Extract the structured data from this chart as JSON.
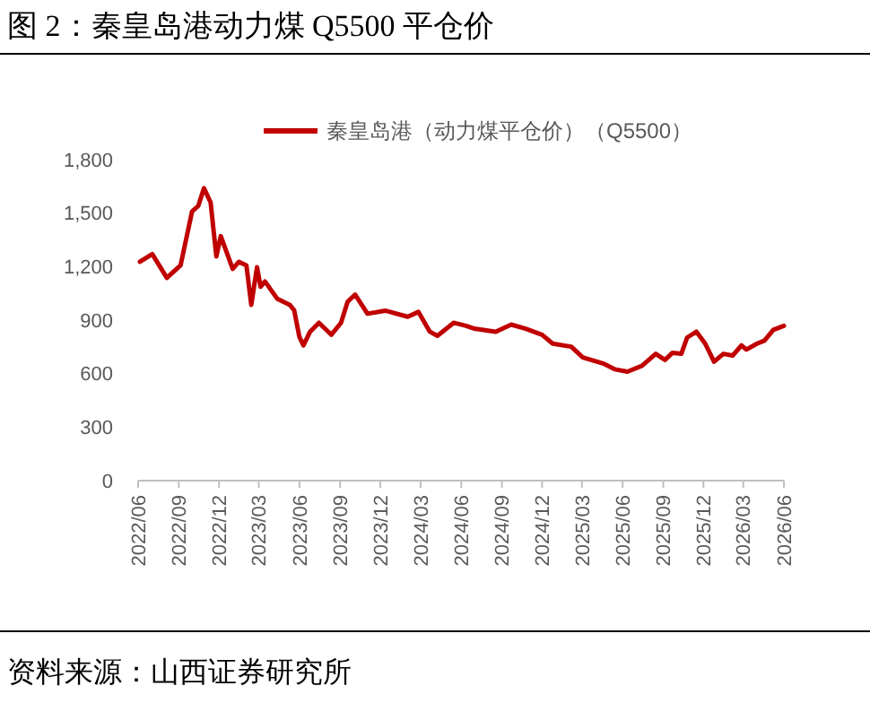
{
  "chart_data": {
    "type": "line",
    "title": "图 2：秦皇岛港动力煤 Q5500 平仓价",
    "annotations": [
      "资料来源：山西证券研究所"
    ],
    "x": [
      "2022-06-05",
      "2022-07-03",
      "2022-08-05",
      "2022-09-05",
      "2022-10-01",
      "2022-10-15",
      "2022-10-28",
      "2022-11-12",
      "2022-11-25",
      "2022-12-05",
      "2023-01-01",
      "2023-01-15",
      "2023-02-01",
      "2023-02-12",
      "2023-02-25",
      "2023-03-05",
      "2023-03-15",
      "2023-04-12",
      "2023-05-10",
      "2023-05-20",
      "2023-06-01",
      "2023-06-10",
      "2023-06-25",
      "2023-07-15",
      "2023-08-12",
      "2023-09-03",
      "2023-09-18",
      "2023-10-05",
      "2023-11-02",
      "2023-12-12",
      "2024-02-01",
      "2024-02-25",
      "2024-03-22",
      "2024-04-08",
      "2024-05-15",
      "2024-06-12",
      "2024-07-01",
      "2024-08-18",
      "2024-09-22",
      "2024-10-25",
      "2024-12-01",
      "2024-12-25",
      "2025-02-05",
      "2025-03-03",
      "2025-04-18",
      "2025-05-15",
      "2025-06-12",
      "2025-07-15",
      "2025-08-15",
      "2025-09-05",
      "2025-09-22",
      "2025-10-12",
      "2025-10-25",
      "2025-11-15",
      "2025-12-05",
      "2025-12-25",
      "2026-01-15",
      "2026-02-05",
      "2026-02-25",
      "2026-03-08",
      "2026-04-01",
      "2026-04-18",
      "2026-05-08",
      "2026-06-01"
    ],
    "series": [
      {
        "name": "秦皇岛港（动力煤平仓价）（Q5500）",
        "color": "#c00000",
        "values": [
          1227,
          1270,
          1137,
          1207,
          1509,
          1540,
          1640,
          1560,
          1257,
          1371,
          1187,
          1227,
          1207,
          986,
          1197,
          1087,
          1117,
          1019,
          986,
          955,
          805,
          758,
          835,
          885,
          818,
          885,
          1003,
          1043,
          936,
          953,
          919,
          946,
          835,
          812,
          885,
          868,
          852,
          835,
          875,
          852,
          818,
          768,
          751,
          691,
          657,
          624,
          611,
          644,
          711,
          677,
          717,
          711,
          802,
          835,
          768,
          667,
          711,
          701,
          758,
          735,
          768,
          785,
          845,
          868
        ]
      }
    ],
    "xlim": [
      "2022-06",
      "2026-06"
    ],
    "xticks": [
      {
        "value": "2022-06",
        "label": "2022/06"
      },
      {
        "value": "2022-09",
        "label": "2022/09"
      },
      {
        "value": "2022-12",
        "label": "2022/12"
      },
      {
        "value": "2023-03",
        "label": "2023/03"
      },
      {
        "value": "2023-06",
        "label": "2023/06"
      },
      {
        "value": "2023-09",
        "label": "2023/09"
      },
      {
        "value": "2023-12",
        "label": "2023/12"
      },
      {
        "value": "2024-03",
        "label": "2024/03"
      },
      {
        "value": "2024-06",
        "label": "2024/06"
      },
      {
        "value": "2024-09",
        "label": "2024/09"
      },
      {
        "value": "2024-12",
        "label": "2024/12"
      },
      {
        "value": "2025-03",
        "label": "2025/03"
      },
      {
        "value": "2025-06",
        "label": "2025/06"
      },
      {
        "value": "2025-09",
        "label": "2025/09"
      },
      {
        "value": "2025-12",
        "label": "2025/12"
      },
      {
        "value": "2026-03",
        "label": "2026/03"
      },
      {
        "value": "2026-06",
        "label": "2026/06"
      }
    ],
    "ylim": [
      0,
      1800
    ],
    "yticks": [
      0,
      300,
      600,
      900,
      {
        "value": 1200,
        "label": "1,200"
      },
      {
        "value": 1500,
        "label": "1,500"
      },
      {
        "value": 1800,
        "label": "1,800"
      }
    ],
    "grid": false,
    "legend": "top",
    "marker": "none",
    "line_style": "solid"
  }
}
